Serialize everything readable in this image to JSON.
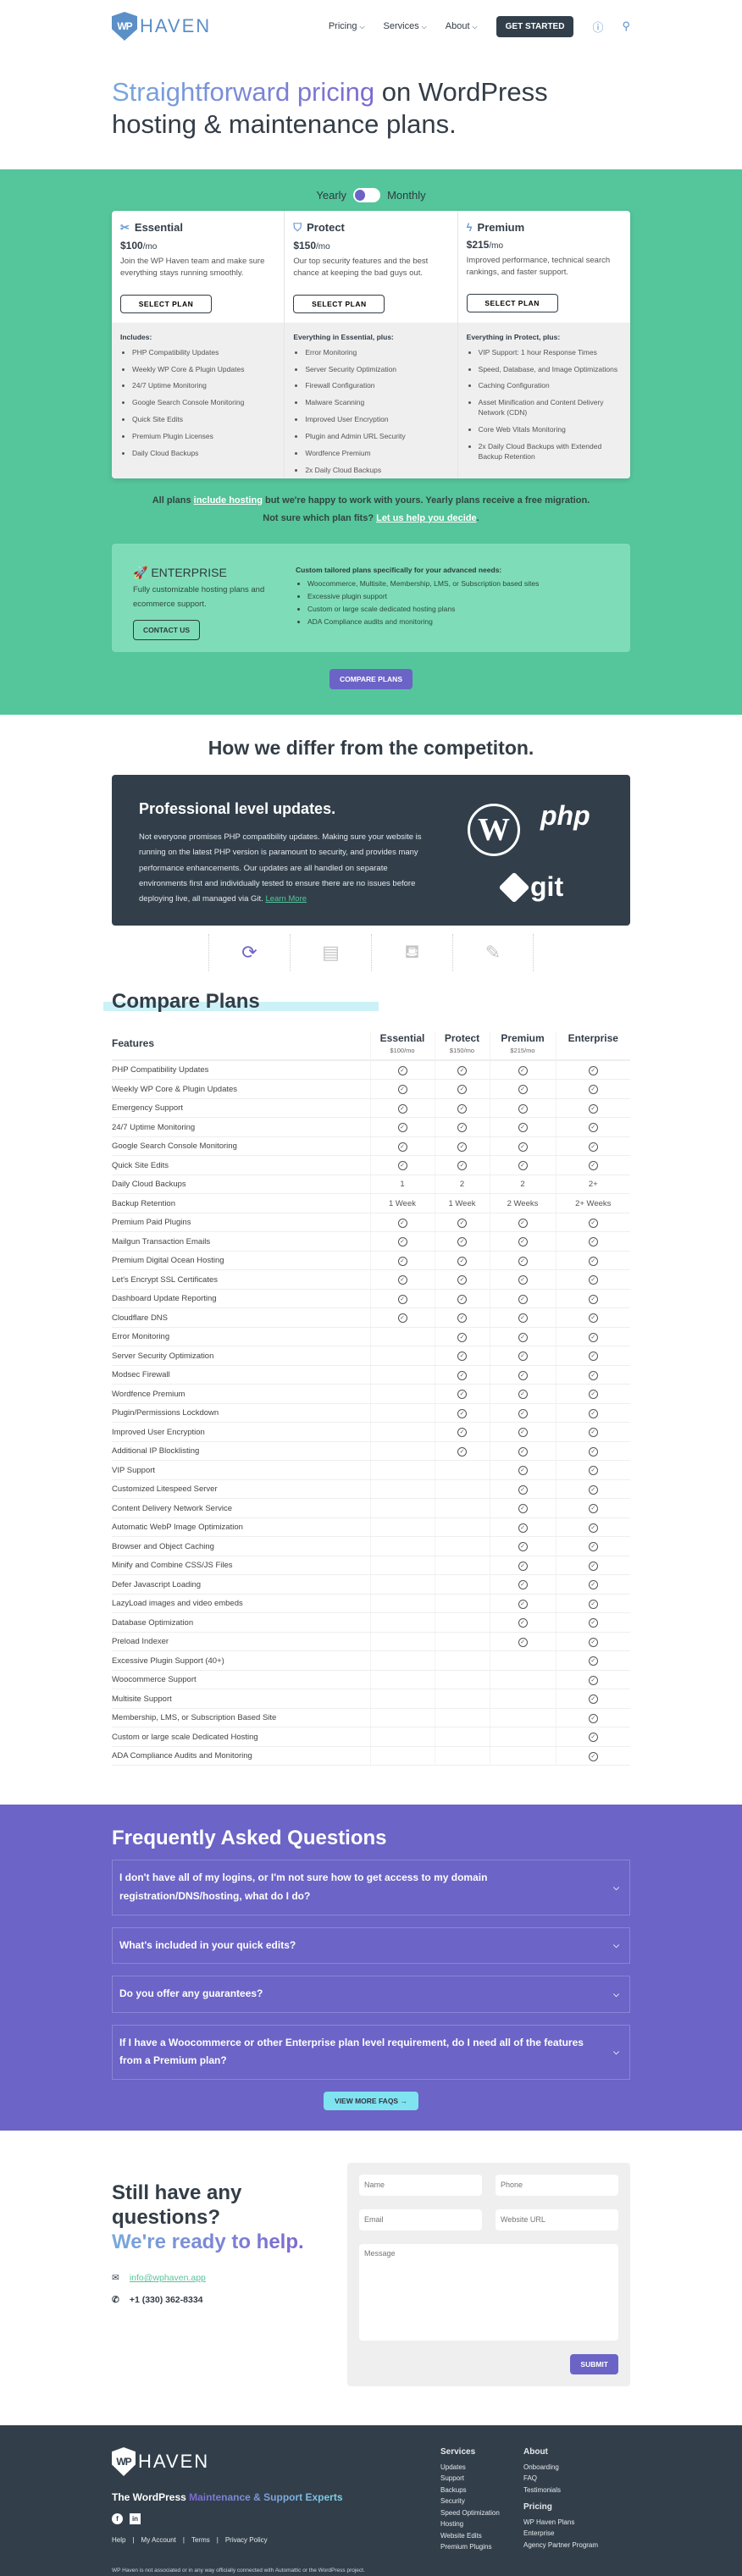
{
  "header": {
    "logo_text": "HAVEN",
    "logo_mark": "WP",
    "nav": [
      {
        "label": "Pricing"
      },
      {
        "label": "Services"
      },
      {
        "label": "About"
      }
    ],
    "cta": "GET STARTED",
    "help_icon": "question-circle-icon",
    "account_icon": "user-icon"
  },
  "hero": {
    "title_highlight": "Straightforward pricing",
    "title_rest": " on WordPress hosting & maintenance plans."
  },
  "billing": {
    "yearly": "Yearly",
    "monthly": "Monthly",
    "selected": "Yearly"
  },
  "colors": {
    "green": "#55c59b",
    "purple": "#6c63c7",
    "dark": "#323f4b",
    "cyan": "#7fe3f0"
  },
  "plans": [
    {
      "name": "Essential",
      "icon": "tools-icon",
      "price": "$100",
      "per": "/mo",
      "desc": "Join the WP Haven team and make sure everything stays running smoothly.",
      "button": "SELECT PLAN",
      "heading": "Includes:",
      "items": [
        "PHP Compatibility Updates",
        "Weekly WP Core & Plugin Updates",
        "24/7 Uptime Monitoring",
        "Google Search Console Monitoring",
        "Quick Site Edits",
        "Premium Plugin Licenses",
        "Daily Cloud Backups"
      ]
    },
    {
      "name": "Protect",
      "icon": "shield-check-icon",
      "price": "$150",
      "per": "/mo",
      "desc": "Our top security features and the best chance at keeping the bad guys out.",
      "button": "SELECT PLAN",
      "heading": "Everything in Essential, plus:",
      "items": [
        "Error Monitoring",
        "Server Security Optimization",
        "Firewall Configuration",
        "Malware Scanning",
        "Improved User Encryption",
        "Plugin and Admin URL Security",
        "Wordfence Premium",
        "2x Daily Cloud Backups"
      ]
    },
    {
      "name": "Premium",
      "icon": "lightning-icon",
      "price": "$215",
      "per": "/mo",
      "desc": "Improved performance, technical search rankings, and faster support.",
      "button": "SELECT PLAN",
      "heading": "Everything in Protect, plus:",
      "items": [
        "VIP Support: 1 hour Response Times",
        "Speed, Database, and Image Optimizations",
        "Caching Configuration",
        "Asset Minification and Content Delivery Network (CDN)",
        "Core Web Vitals Monitoring",
        "2x Daily Cloud Backups with Extended Backup Retention"
      ]
    }
  ],
  "note": {
    "p1": "All plans ",
    "link1": "include hosting",
    "p2": " but we're happy to work with yours. Yearly plans receive a free migration.",
    "p3": "Not sure which plan fits? ",
    "link2": "Let us help you decide",
    "p4": "."
  },
  "enterprise": {
    "title": "ENTERPRISE",
    "desc": "Fully customizable hosting plans and ecommerce support.",
    "button": "CONTACT US",
    "heading": "Custom tailored plans specifically for your advanced needs:",
    "items": [
      "Woocommerce, Multisite, Membership, LMS, or Subscription based sites",
      "Excessive plugin support",
      "Custom or large scale dedicated hosting plans",
      "ADA Compliance audits and monitoring"
    ]
  },
  "compare_button": "COMPARE PLANS",
  "differ": {
    "title": "How we differ from the competiton.",
    "card_title": "Professional level updates.",
    "card_text": "Not everyone promises PHP compatibility updates. Making sure your website is running on the latest PHP version is paramount to security, and provides many performance enhancements. Our updates are all handled on separate environments first and individually tested to ensure there are no issues before deploying live, all managed via Git. ",
    "learn_more": "Learn More",
    "logos": {
      "wp": "W",
      "php": "php",
      "git": "git"
    },
    "tabs": [
      {
        "icon": "refresh-icon",
        "active": true
      },
      {
        "icon": "server-icon",
        "active": false
      },
      {
        "icon": "concierge-bell-icon",
        "active": false
      },
      {
        "icon": "edit-icon",
        "active": false
      }
    ]
  },
  "compare": {
    "title": "Compare Plans",
    "features_label": "Features",
    "columns": [
      {
        "name": "Essential",
        "price": "$100/mo"
      },
      {
        "name": "Protect",
        "price": "$150/mo"
      },
      {
        "name": "Premium",
        "price": "$215/mo"
      },
      {
        "name": "Enterprise",
        "price": ""
      }
    ],
    "rows": [
      [
        "PHP Compatibility Updates",
        "c",
        "c",
        "c",
        "c"
      ],
      [
        "Weekly WP Core & Plugin Updates",
        "c",
        "c",
        "c",
        "c"
      ],
      [
        "Emergency Support",
        "c",
        "c",
        "c",
        "c"
      ],
      [
        "24/7 Uptime Monitoring",
        "c",
        "c",
        "c",
        "c"
      ],
      [
        "Google Search Console Monitoring",
        "c",
        "c",
        "c",
        "c"
      ],
      [
        "Quick Site Edits",
        "c",
        "c",
        "c",
        "c"
      ],
      [
        "Daily Cloud Backups",
        "1",
        "2",
        "2",
        "2+"
      ],
      [
        "Backup Retention",
        "1 Week",
        "1 Week",
        "2 Weeks",
        "2+ Weeks"
      ],
      [
        "Premium Paid Plugins",
        "c",
        "c",
        "c",
        "c"
      ],
      [
        "Mailgun Transaction Emails",
        "c",
        "c",
        "c",
        "c"
      ],
      [
        "Premium Digital Ocean Hosting",
        "c",
        "c",
        "c",
        "c"
      ],
      [
        "Let's Encrypt SSL Certificates",
        "c",
        "c",
        "c",
        "c"
      ],
      [
        "Dashboard Update Reporting",
        "c",
        "c",
        "c",
        "c"
      ],
      [
        "Cloudflare DNS",
        "c",
        "c",
        "c",
        "c"
      ],
      [
        "Error Monitoring",
        "",
        "c",
        "c",
        "c"
      ],
      [
        "Server Security Optimization",
        "",
        "c",
        "c",
        "c"
      ],
      [
        "Modsec Firewall",
        "",
        "c",
        "c",
        "c"
      ],
      [
        "Wordfence Premium",
        "",
        "c",
        "c",
        "c"
      ],
      [
        "Plugin/Permissions Lockdown",
        "",
        "c",
        "c",
        "c"
      ],
      [
        "Improved User Encryption",
        "",
        "c",
        "c",
        "c"
      ],
      [
        "Additional IP Blocklisting",
        "",
        "c",
        "c",
        "c"
      ],
      [
        "VIP Support",
        "",
        "",
        "c",
        "c"
      ],
      [
        "Customized Litespeed Server",
        "",
        "",
        "c",
        "c"
      ],
      [
        "Content Delivery Network Service",
        "",
        "",
        "c",
        "c"
      ],
      [
        "Automatic WebP Image Optimization",
        "",
        "",
        "c",
        "c"
      ],
      [
        "Browser and Object Caching",
        "",
        "",
        "c",
        "c"
      ],
      [
        "Minify and Combine CSS/JS Files",
        "",
        "",
        "c",
        "c"
      ],
      [
        "Defer Javascript Loading",
        "",
        "",
        "c",
        "c"
      ],
      [
        "LazyLoad images and video embeds",
        "",
        "",
        "c",
        "c"
      ],
      [
        "Database Optimization",
        "",
        "",
        "c",
        "c"
      ],
      [
        "Preload Indexer",
        "",
        "",
        "c",
        "c"
      ],
      [
        "Excessive Plugin Support (40+)",
        "",
        "",
        "",
        "c"
      ],
      [
        "Woocommerce Support",
        "",
        "",
        "",
        "c"
      ],
      [
        "Multisite Support",
        "",
        "",
        "",
        "c"
      ],
      [
        "Membership, LMS, or Subscription Based Site",
        "",
        "",
        "",
        "c"
      ],
      [
        "Custom or large scale Dedicated Hosting",
        "",
        "",
        "",
        "c"
      ],
      [
        "ADA Compliance Audits and Monitoring",
        "",
        "",
        "",
        "c"
      ]
    ]
  },
  "faq": {
    "title": "Frequently Asked Questions",
    "items": [
      "I don't have all of my logins, or I'm not sure how to get access to my domain registration/DNS/hosting, what do I do?",
      "What's included in your quick edits?",
      "Do you offer any guarantees?",
      "If I have a Woocommerce or other Enterprise plan level requirement, do I need all of the features from a Premium plan?"
    ],
    "more": "VIEW MORE FAQS →"
  },
  "contact": {
    "title1": "Still have any questions?",
    "title2": "We're ready to help.",
    "email": "info@wphaven.app",
    "phone": "+1 (330) 362-8334",
    "form": {
      "name": "Name",
      "phone": "Phone",
      "email": "Email",
      "website": "Website URL",
      "message": "Message",
      "submit": "SUBMIT"
    }
  },
  "footer": {
    "tag1": "The WordPress ",
    "tag2": "Maintenance & Support Experts",
    "legal": [
      "Help",
      "|",
      "My Account",
      "|",
      "Terms",
      "|",
      "Privacy Policy"
    ],
    "disclaimer": "WP Haven is not associated or in any way officially connected with Automattic or the WordPress project.",
    "services": {
      "title": "Services",
      "links": [
        "Updates",
        "Support",
        "Backups",
        "Security",
        "Speed Optimization",
        "Hosting",
        "Website Edits",
        "Premium Plugins"
      ]
    },
    "about": {
      "title": "About",
      "links": [
        "Onboarding",
        "FAQ",
        "Testimonials"
      ]
    },
    "pricing": {
      "title": "Pricing",
      "links": [
        "WP Haven Plans",
        "Enterprise",
        "Agency Partner Program"
      ]
    }
  }
}
